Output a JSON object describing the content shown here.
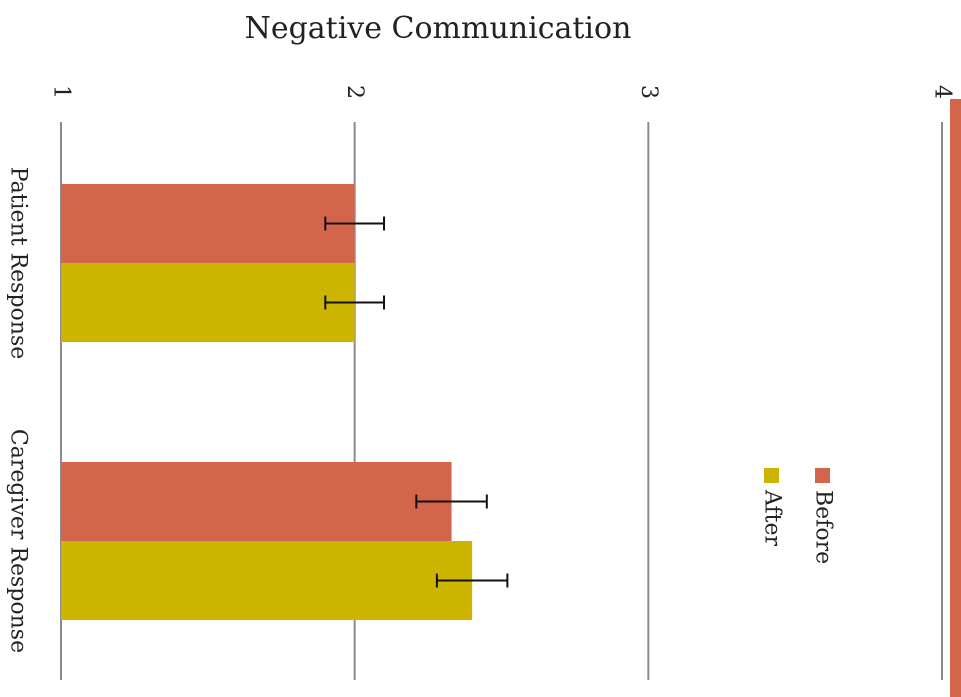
{
  "title": "Negative Communication",
  "colors": {
    "before": "#d3654a",
    "after": "#cdb400",
    "grid": "#8c8c8c",
    "error": "#111111",
    "accent_bar": "#d3654a"
  },
  "chart_data": {
    "type": "bar",
    "orientation": "horizontal",
    "title": "Negative Communication",
    "categories": [
      "Patient Response",
      "Caregiver Response"
    ],
    "series": [
      {
        "name": "Before",
        "values": [
          2.0,
          2.33
        ],
        "error": [
          0.1,
          0.12
        ]
      },
      {
        "name": "After",
        "values": [
          2.0,
          2.4
        ],
        "error": [
          0.1,
          0.12
        ]
      }
    ],
    "ylim": [
      1,
      4
    ],
    "ticks": [
      "1",
      "2",
      "3",
      "4"
    ],
    "grid": true,
    "legend_position": "right"
  }
}
